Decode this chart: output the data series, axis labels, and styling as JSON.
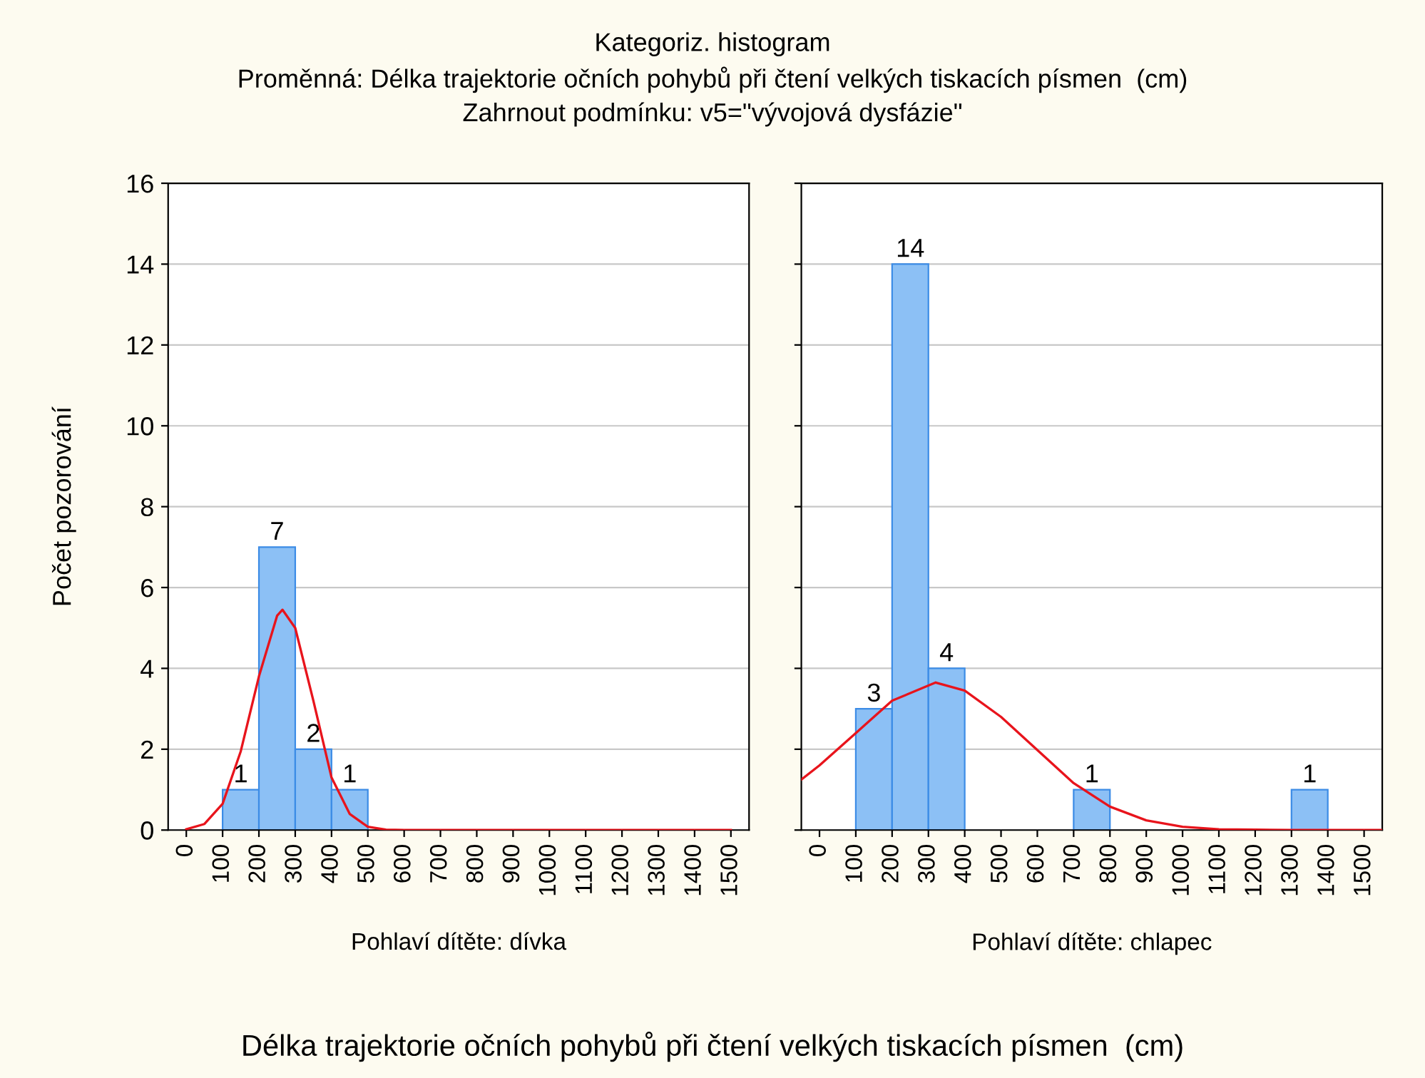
{
  "chart_data": [
    {
      "type": "histogram",
      "title": "Kategoriz. histogram\nProměnná: Délka trajektorie očních pohybů při čtení velkých tiskacích písmen  (cm)\nZahrnout podmínku: v5=\"vývojová dysfázie\"",
      "ylabel": "Počet pozorování",
      "xlabel": "Pohlaví dítěte: dívka",
      "annotations": [
        "Délka trajektorie očních pohybů při čtení velkých tiskacích písmen  (cm)"
      ],
      "bins": [
        0,
        100,
        200,
        300,
        400,
        500,
        600,
        700,
        800,
        900,
        1000,
        1100,
        1200,
        1300,
        1400,
        1500
      ],
      "values": [
        0,
        1,
        7,
        2,
        1,
        0,
        0,
        0,
        0,
        0,
        0,
        0,
        0,
        0,
        0
      ],
      "value_labels": [
        null,
        "1",
        "7",
        "2",
        "1",
        null,
        null,
        null,
        null,
        null,
        null,
        null,
        null,
        null,
        null
      ],
      "color": "#8cc0f5",
      "series": [
        {
          "type": "line",
          "color": "#e8141c",
          "x": [
            0,
            50,
            100,
            150,
            200,
            250,
            265,
            300,
            350,
            400,
            450,
            500,
            550,
            600,
            1000,
            1500
          ],
          "values": [
            0.02,
            0.15,
            0.65,
            1.95,
            3.8,
            5.3,
            5.45,
            5.0,
            3.2,
            1.3,
            0.4,
            0.08,
            0.01,
            0,
            0,
            0
          ]
        }
      ],
      "xlim": [
        -50,
        1550
      ],
      "xticks": [
        0,
        100,
        200,
        300,
        400,
        500,
        600,
        700,
        800,
        900,
        1000,
        1100,
        1200,
        1300,
        1400,
        1500
      ],
      "ylim": [
        0,
        16
      ],
      "yticks": [
        0,
        2,
        4,
        6,
        8,
        10,
        12,
        14,
        16
      ],
      "grid": "y"
    },
    {
      "type": "histogram",
      "xlabel": "Pohlaví dítěte: chlapec",
      "bins": [
        0,
        100,
        200,
        300,
        400,
        500,
        600,
        700,
        800,
        900,
        1000,
        1100,
        1200,
        1300,
        1400,
        1500
      ],
      "values": [
        0,
        3,
        14,
        4,
        0,
        0,
        0,
        1,
        0,
        0,
        0,
        0,
        0,
        1,
        0
      ],
      "value_labels": [
        null,
        "3",
        "14",
        "4",
        null,
        null,
        null,
        "1",
        null,
        null,
        null,
        null,
        null,
        "1",
        null
      ],
      "color": "#8cc0f5",
      "series": [
        {
          "type": "line",
          "color": "#e8141c",
          "x": [
            -50,
            0,
            100,
            200,
            320,
            400,
            500,
            600,
            700,
            800,
            900,
            1000,
            1100,
            1200,
            1300,
            1550
          ],
          "values": [
            1.25,
            1.6,
            2.4,
            3.2,
            3.65,
            3.45,
            2.8,
            1.98,
            1.16,
            0.58,
            0.24,
            0.08,
            0.02,
            0.01,
            0,
            0
          ]
        }
      ],
      "xlim": [
        -50,
        1550
      ],
      "xticks": [
        0,
        100,
        200,
        300,
        400,
        500,
        600,
        700,
        800,
        900,
        1000,
        1100,
        1200,
        1300,
        1400,
        1500
      ],
      "ylim": [
        0,
        16
      ],
      "yticks": [
        0,
        2,
        4,
        6,
        8,
        10,
        12,
        14,
        16
      ],
      "grid": "y",
      "tick_labels": "x"
    }
  ]
}
